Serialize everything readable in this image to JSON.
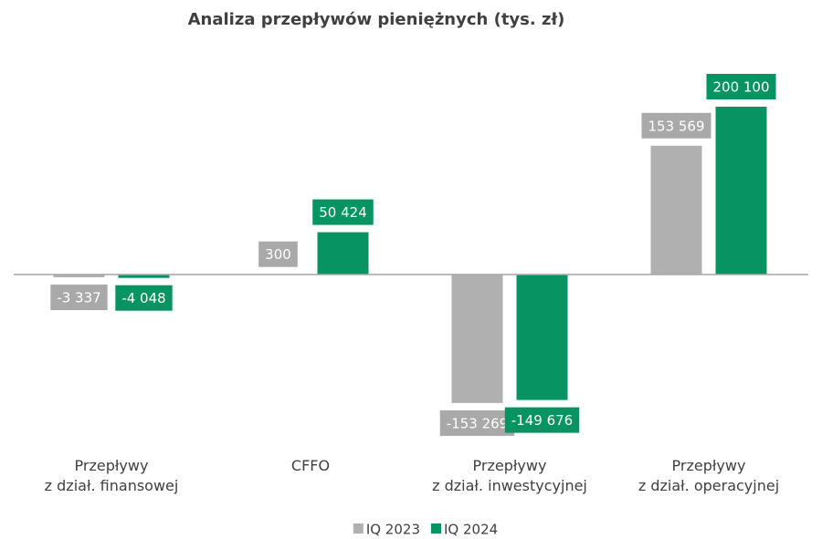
{
  "chart_data": {
    "type": "bar",
    "title": "Analiza przepływów pieniężnych (tys. zł)",
    "categories": [
      "Przepływy\nz dział. finansowej",
      "CFFO",
      "Przepływy\nz dział. inwestycyjnej",
      "Przepływy\nz dział. operacyjnej"
    ],
    "series": [
      {
        "name": "IQ 2023",
        "color": "#b0b0b0",
        "values": [
          -3337,
          300,
          -153269,
          153569
        ],
        "value_labels": [
          "-3 337",
          "300",
          "-153 269",
          "153 569"
        ]
      },
      {
        "name": "IQ 2024",
        "color": "#079462",
        "values": [
          -4048,
          50424,
          -149676,
          200100
        ],
        "value_labels": [
          "-4 048",
          "50 424",
          "-149 676",
          "200 100"
        ]
      }
    ],
    "ylim": [
      -160000,
      220000
    ],
    "legend": "bottom"
  }
}
